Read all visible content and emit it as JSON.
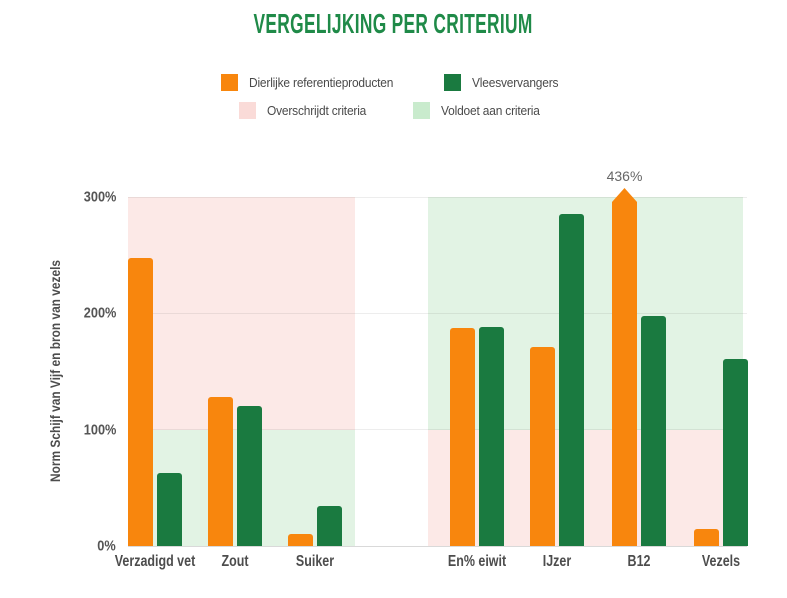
{
  "chart_data": {
    "type": "bar",
    "title": "VERGELIJKING PER CRITERIUM",
    "ylabel": "Norm Schijf van Vijf en bron van vezels",
    "xlabel": "",
    "ylim": [
      0,
      300
    ],
    "y_tick_values": [
      0,
      100,
      200,
      300
    ],
    "y_tick_labels": [
      "0%",
      "100%",
      "200%",
      "300%"
    ],
    "grid": true,
    "legend_position": "top",
    "categories": [
      "Verzadigd vet",
      "Zout",
      "Suiker",
      "En% eiwit",
      "IJzer",
      "B12",
      "Vezels"
    ],
    "series": [
      {
        "name": "Dierlijke referentieproducten",
        "color": "#F8860D",
        "values": [
          248,
          128,
          10,
          187,
          171,
          436,
          15
        ]
      },
      {
        "name": "Vleesvervangers",
        "color": "#1A7A40",
        "values": [
          63,
          120,
          34,
          188,
          285,
          198,
          161
        ]
      }
    ],
    "band_legend": [
      {
        "name": "Overschrijdt criteria",
        "color": "#FADBD8",
        "fill": "#FCE9E7"
      },
      {
        "name": "Voldoet aan criteria",
        "color": "#C9EBCD",
        "fill": "#E2F3E4"
      }
    ],
    "bands": [
      {
        "categories": [
          "Verzadigd vet",
          "Zout",
          "Suiker"
        ],
        "above_100_pct": "Overschrijdt criteria",
        "below_100_pct": "Voldoet aan criteria"
      },
      {
        "categories": [
          "En% eiwit",
          "IJzer",
          "B12",
          "Vezels"
        ],
        "above_100_pct": "Voldoet aan criteria",
        "below_100_pct": "Overschrijdt criteria"
      }
    ],
    "annotations": [
      {
        "category": "B12",
        "series": "Dierlijke referentieproducten",
        "text": "436%",
        "capped_at": 300
      }
    ],
    "colors": {
      "title_green": "#1F8A48",
      "orange_bar": "#F8860D",
      "green_bar": "#1A7A40",
      "pink_band": "#FCE9E7",
      "green_band": "#E2F3E4",
      "axis_text": "#4d4d4d"
    }
  }
}
